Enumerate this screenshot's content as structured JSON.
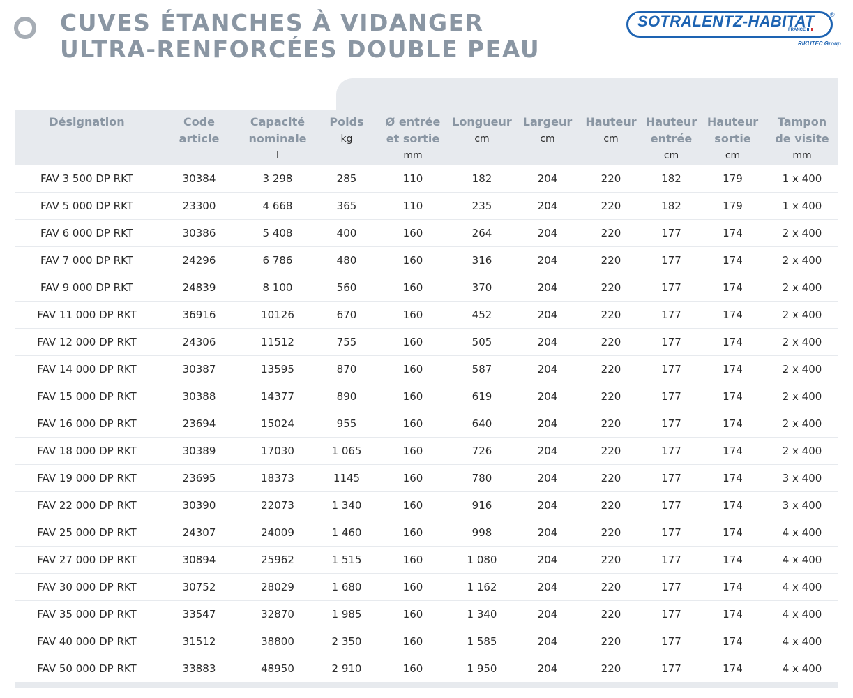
{
  "header": {
    "title_line1": "CUVES ÉTANCHES À VIDANGER",
    "title_line2": "ULTRA-RENFORCÉES DOUBLE PEAU"
  },
  "logo": {
    "brand": "SOTRALENTZ-HABITAT",
    "registered": "®",
    "country": "FRANCE",
    "group": "RIKUTEC Group"
  },
  "colors": {
    "title": "#8a96a3",
    "brand_blue": "#1d63b2",
    "panel_gray": "#e7eaee"
  },
  "table": {
    "columns": [
      {
        "label_lines": [
          "Désignation"
        ],
        "unit": ""
      },
      {
        "label_lines": [
          "Code",
          "article"
        ],
        "unit": ""
      },
      {
        "label_lines": [
          "Capacité",
          "nominale"
        ],
        "unit": "l"
      },
      {
        "label_lines": [
          "Poids"
        ],
        "unit": "kg"
      },
      {
        "label_lines": [
          "Ø entrée",
          "et sortie"
        ],
        "unit": "mm"
      },
      {
        "label_lines": [
          "Longueur"
        ],
        "unit": "cm"
      },
      {
        "label_lines": [
          "Largeur"
        ],
        "unit": "cm"
      },
      {
        "label_lines": [
          "Hauteur"
        ],
        "unit": "cm"
      },
      {
        "label_lines": [
          "Hauteur",
          "entrée"
        ],
        "unit": "cm"
      },
      {
        "label_lines": [
          "Hauteur",
          "sortie"
        ],
        "unit": "cm"
      },
      {
        "label_lines": [
          "Tampon",
          "de visite"
        ],
        "unit": "mm"
      }
    ],
    "rows": [
      [
        "FAV 3 500 DP RKT",
        "30384",
        "3 298",
        "285",
        "110",
        "182",
        "204",
        "220",
        "182",
        "179",
        "1 x 400"
      ],
      [
        "FAV 5 000 DP RKT",
        "23300",
        "4 668",
        "365",
        "110",
        "235",
        "204",
        "220",
        "182",
        "179",
        "1 x 400"
      ],
      [
        "FAV 6 000 DP RKT",
        "30386",
        "5 408",
        "400",
        "160",
        "264",
        "204",
        "220",
        "177",
        "174",
        "2 x 400"
      ],
      [
        "FAV 7 000 DP RKT",
        "24296",
        "6 786",
        "480",
        "160",
        "316",
        "204",
        "220",
        "177",
        "174",
        "2 x 400"
      ],
      [
        "FAV 9 000 DP RKT",
        "24839",
        "8 100",
        "560",
        "160",
        "370",
        "204",
        "220",
        "177",
        "174",
        "2 x 400"
      ],
      [
        "FAV 11 000 DP RKT",
        "36916",
        "10126",
        "670",
        "160",
        "452",
        "204",
        "220",
        "177",
        "174",
        "2 x 400"
      ],
      [
        "FAV 12 000 DP RKT",
        "24306",
        "11512",
        "755",
        "160",
        "505",
        "204",
        "220",
        "177",
        "174",
        "2 x 400"
      ],
      [
        "FAV 14 000 DP RKT",
        "30387",
        "13595",
        "870",
        "160",
        "587",
        "204",
        "220",
        "177",
        "174",
        "2 x 400"
      ],
      [
        "FAV 15 000 DP RKT",
        "30388",
        "14377",
        "890",
        "160",
        "619",
        "204",
        "220",
        "177",
        "174",
        "2 x 400"
      ],
      [
        "FAV 16 000 DP RKT",
        "23694",
        "15024",
        "955",
        "160",
        "640",
        "204",
        "220",
        "177",
        "174",
        "2 x 400"
      ],
      [
        "FAV 18 000 DP RKT",
        "30389",
        "17030",
        "1 065",
        "160",
        "726",
        "204",
        "220",
        "177",
        "174",
        "2 x 400"
      ],
      [
        "FAV 19 000 DP RKT",
        "23695",
        "18373",
        "1145",
        "160",
        "780",
        "204",
        "220",
        "177",
        "174",
        "3 x 400"
      ],
      [
        "FAV 22 000 DP RKT",
        "30390",
        "22073",
        "1 340",
        "160",
        "916",
        "204",
        "220",
        "177",
        "174",
        "3 x 400"
      ],
      [
        "FAV 25 000 DP RKT",
        "24307",
        "24009",
        "1 460",
        "160",
        "998",
        "204",
        "220",
        "177",
        "174",
        "4 x 400"
      ],
      [
        "FAV 27 000 DP RKT",
        "30894",
        "25962",
        "1 515",
        "160",
        "1 080",
        "204",
        "220",
        "177",
        "174",
        "4 x 400"
      ],
      [
        "FAV 30 000 DP RKT",
        "30752",
        "28029",
        "1 680",
        "160",
        "1 162",
        "204",
        "220",
        "177",
        "174",
        "4 x 400"
      ],
      [
        "FAV 35 000 DP RKT",
        "33547",
        "32870",
        "1 985",
        "160",
        "1 340",
        "204",
        "220",
        "177",
        "174",
        "4 x 400"
      ],
      [
        "FAV 40 000 DP RKT",
        "31512",
        "38800",
        "2 350",
        "160",
        "1 585",
        "204",
        "220",
        "177",
        "174",
        "4 x 400"
      ],
      [
        "FAV 50 000 DP RKT",
        "33883",
        "48950",
        "2 910",
        "160",
        "1 950",
        "204",
        "220",
        "177",
        "174",
        "4 x 400"
      ]
    ]
  }
}
